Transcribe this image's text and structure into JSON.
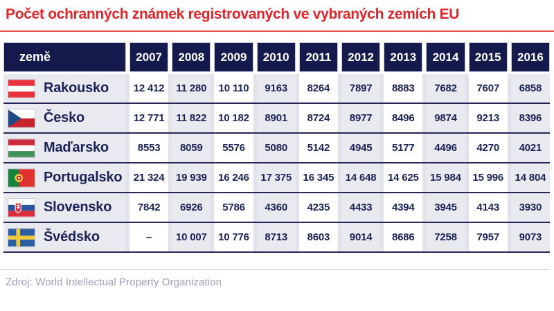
{
  "title": "Počet ochranných známek registrovaných ve vybraných zemích EU",
  "source": "Zdroj: World Intellectual Property Organization",
  "colors": {
    "title_red": "#e0242a",
    "rule_red": "#e4514b",
    "header_navy": "#141b4c",
    "text_navy": "#1b2256",
    "row_separator_navy": "#26265a",
    "cell_gray": "#e9e9f0",
    "cell_white": "#ffffff",
    "source_gray": "#9e9eb8"
  },
  "table": {
    "country_header": "země",
    "years": [
      "2007",
      "2008",
      "2009",
      "2010",
      "2011",
      "2012",
      "2013",
      "2014",
      "2015",
      "2016"
    ],
    "rows": [
      {
        "country": "Rakousko",
        "flag": "austria-flag",
        "values": [
          "12 412",
          "11 280",
          "10 110",
          "9163",
          "8264",
          "7897",
          "8883",
          "7682",
          "7607",
          "6858"
        ]
      },
      {
        "country": "Česko",
        "flag": "czechia-flag",
        "values": [
          "12 771",
          "11 822",
          "10 182",
          "8901",
          "8724",
          "8977",
          "8496",
          "9874",
          "9213",
          "8396"
        ]
      },
      {
        "country": "Maďarsko",
        "flag": "hungary-flag",
        "values": [
          "8553",
          "8059",
          "5576",
          "5080",
          "5142",
          "4945",
          "5177",
          "4496",
          "4270",
          "4021"
        ]
      },
      {
        "country": "Portugalsko",
        "flag": "portugal-flag",
        "values": [
          "21 324",
          "19 939",
          "16 246",
          "17 375",
          "16 345",
          "14 648",
          "14 625",
          "15 984",
          "15 996",
          "14 804"
        ]
      },
      {
        "country": "Slovensko",
        "flag": "slovakia-flag",
        "values": [
          "7842",
          "6926",
          "5786",
          "4360",
          "4235",
          "4433",
          "4394",
          "3945",
          "4143",
          "3930"
        ]
      },
      {
        "country": "Švédsko",
        "flag": "sweden-flag",
        "values": [
          "–",
          "10 007",
          "10 776",
          "8713",
          "8603",
          "9014",
          "8686",
          "7258",
          "7957",
          "9073"
        ]
      }
    ]
  },
  "chart_data": {
    "type": "table",
    "title": "Počet ochranných známek registrovaných ve vybraných zemích EU",
    "categories": [
      2007,
      2008,
      2009,
      2010,
      2011,
      2012,
      2013,
      2014,
      2015,
      2016
    ],
    "series": [
      {
        "name": "Rakousko",
        "values": [
          12412,
          11280,
          10110,
          9163,
          8264,
          7897,
          8883,
          7682,
          7607,
          6858
        ]
      },
      {
        "name": "Česko",
        "values": [
          12771,
          11822,
          10182,
          8901,
          8724,
          8977,
          8496,
          9874,
          9213,
          8396
        ]
      },
      {
        "name": "Maďarsko",
        "values": [
          8553,
          8059,
          5576,
          5080,
          5142,
          4945,
          5177,
          4496,
          4270,
          4021
        ]
      },
      {
        "name": "Portugalsko",
        "values": [
          21324,
          19939,
          16246,
          17375,
          16345,
          14648,
          14625,
          15984,
          15996,
          14804
        ]
      },
      {
        "name": "Slovensko",
        "values": [
          7842,
          6926,
          5786,
          4360,
          4235,
          4433,
          4394,
          3945,
          4143,
          3930
        ]
      },
      {
        "name": "Švédsko",
        "values": [
          null,
          10007,
          10776,
          8713,
          8603,
          9014,
          8686,
          7258,
          7957,
          9073
        ]
      }
    ],
    "note": "Švédsko 2007 value shown as dash (missing)",
    "source": "World Intellectual Property Organization"
  }
}
